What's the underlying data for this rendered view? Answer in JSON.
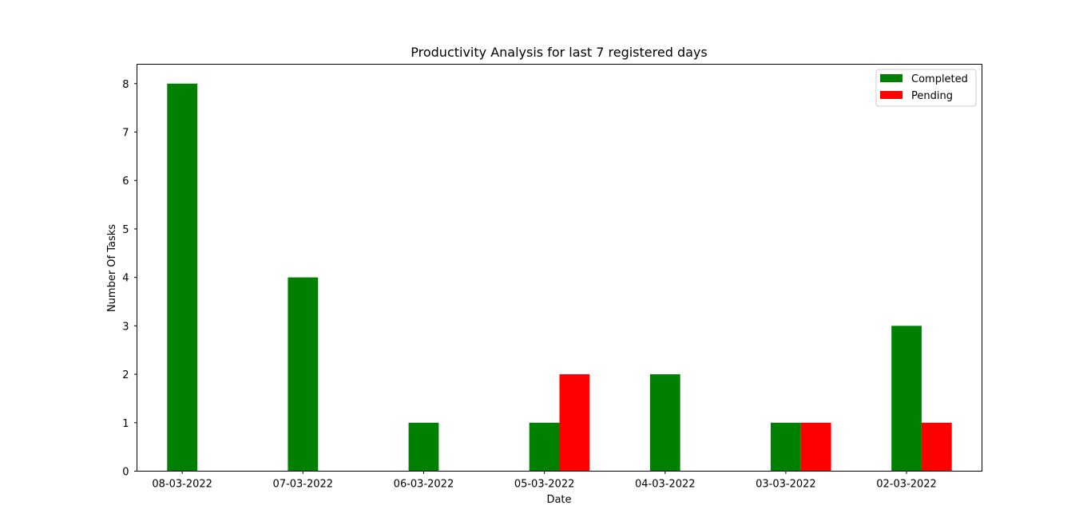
{
  "chart_data": {
    "type": "bar",
    "title": "Productivity Analysis for last 7 registered days",
    "xlabel": "Date",
    "ylabel": "Number Of Tasks",
    "categories": [
      "08-03-2022",
      "07-03-2022",
      "06-03-2022",
      "05-03-2022",
      "04-03-2022",
      "03-03-2022",
      "02-03-2022"
    ],
    "series": [
      {
        "name": "Completed",
        "color": "#008000",
        "values": [
          8,
          4,
          1,
          1,
          2,
          1,
          3
        ]
      },
      {
        "name": "Pending",
        "color": "#ff0000",
        "values": [
          0,
          0,
          0,
          2,
          0,
          1,
          1
        ]
      }
    ],
    "ylim": [
      0,
      8.4
    ],
    "yticks": [
      0,
      1,
      2,
      3,
      4,
      5,
      6,
      7,
      8
    ],
    "grid": false,
    "legend_position": "top-right"
  }
}
